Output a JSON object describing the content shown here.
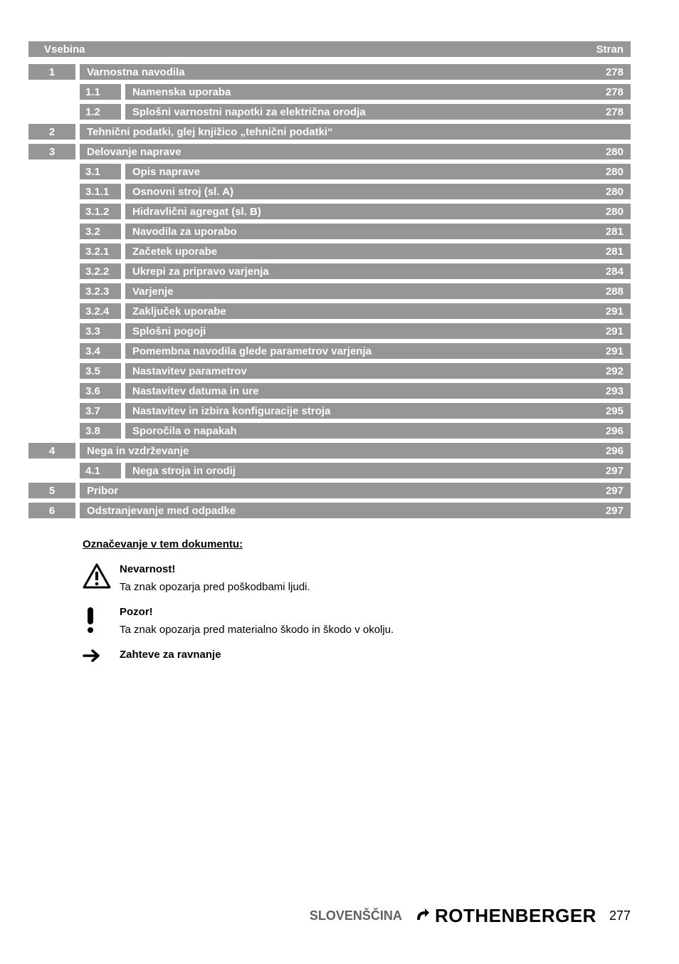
{
  "colors": {
    "bar_bg": "#969696",
    "bar_text": "#ffffff",
    "body_bg": "#ffffff",
    "footer_lang_color": "#606060",
    "footer_page_color": "#000000"
  },
  "typography": {
    "bar_font_size_pt": 11,
    "body_font_size_pt": 11,
    "footer_lang_pt": 13,
    "footer_brand_pt": 19
  },
  "header": {
    "left": "Vsebina",
    "right": "Stran"
  },
  "rows": [
    {
      "level": 1,
      "num": "1",
      "title": "Varnostna navodila",
      "page": "278"
    },
    {
      "level": 2,
      "num": "1.1",
      "title": "Namenska uporaba",
      "page": "278"
    },
    {
      "level": 2,
      "num": "1.2",
      "title": "Splošni varnostni napotki za električna orodja",
      "page": "278"
    },
    {
      "level": 1,
      "num": "2",
      "title": "Tehnični podatki, glej knjižico „tehnični podatki“",
      "page": ""
    },
    {
      "level": 1,
      "num": "3",
      "title": "Delovanje naprave",
      "page": "280"
    },
    {
      "level": 2,
      "num": "3.1",
      "title": "Opis naprave",
      "page": "280"
    },
    {
      "level": 2,
      "num": "3.1.1",
      "title": "Osnovni stroj (sl. A)",
      "page": "280"
    },
    {
      "level": 2,
      "num": "3.1.2",
      "title": "Hidravlični agregat (sl. B)",
      "page": "280"
    },
    {
      "level": 2,
      "num": "3.2",
      "title": "Navodila za uporabo",
      "page": "281"
    },
    {
      "level": 2,
      "num": "3.2.1",
      "title": "Začetek uporabe",
      "page": "281"
    },
    {
      "level": 2,
      "num": "3.2.2",
      "title": "Ukrepi za pripravo varjenja",
      "page": "284"
    },
    {
      "level": 2,
      "num": "3.2.3",
      "title": "Varjenje",
      "page": "288"
    },
    {
      "level": 2,
      "num": "3.2.4",
      "title": "Zaključek uporabe",
      "page": "291"
    },
    {
      "level": 2,
      "num": "3.3",
      "title": "Splošni pogoji",
      "page": "291"
    },
    {
      "level": 2,
      "num": "3.4",
      "title": "Pomembna navodila glede parametrov varjenja",
      "page": "291"
    },
    {
      "level": 2,
      "num": "3.5",
      "title": "Nastavitev parametrov",
      "page": "292"
    },
    {
      "level": 2,
      "num": "3.6",
      "title": "Nastavitev datuma in ure",
      "page": "293"
    },
    {
      "level": 2,
      "num": "3.7",
      "title": "Nastavitev in izbira konfiguracije stroja",
      "page": "295"
    },
    {
      "level": 2,
      "num": "3.8",
      "title": "Sporočila o napakah",
      "page": "296"
    },
    {
      "level": 1,
      "num": "4",
      "title": "Nega in vzdrževanje",
      "page": "296"
    },
    {
      "level": 2,
      "num": "4.1",
      "title": "Nega stroja in orodij",
      "page": "297"
    },
    {
      "level": 1,
      "num": "5",
      "title": "Pribor",
      "page": "297"
    },
    {
      "level": 1,
      "num": "6",
      "title": "Odstranjevanje med odpadke",
      "page": "297"
    }
  ],
  "legend": {
    "heading": "Označevanje v tem dokumentu:",
    "items": [
      {
        "icon": "warning-triangle",
        "title": "Nevarnost!",
        "desc": "Ta znak opozarja pred poškodbami ljudi."
      },
      {
        "icon": "exclamation",
        "title": "Pozor!",
        "desc": "Ta znak opozarja pred materialno škodo in škodo v okolju."
      },
      {
        "icon": "arrow-right",
        "title": "Zahteve za ravnanje",
        "desc": ""
      }
    ]
  },
  "footer": {
    "language": "SLOVENŠČINA",
    "brand": "ROTHENBERGER",
    "page": "277"
  }
}
